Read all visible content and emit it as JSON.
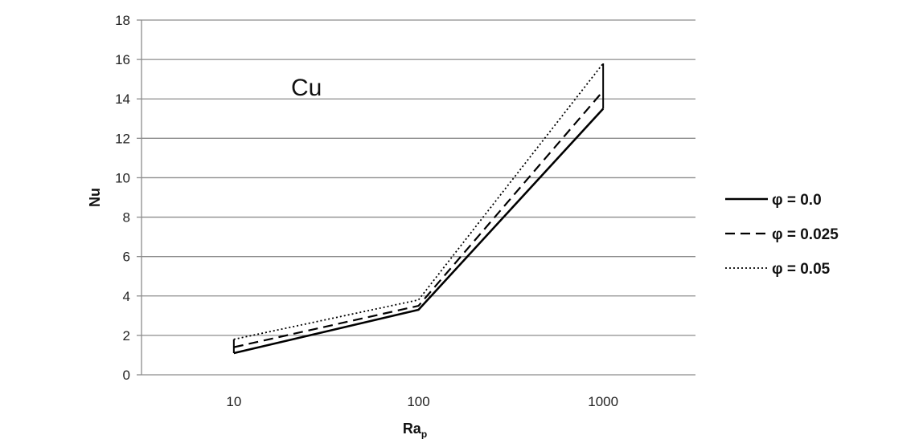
{
  "chart_data": {
    "type": "line",
    "title": "",
    "annotation": "Cu",
    "xlabel": "Ra",
    "xlabel_sub": "p",
    "ylabel": "Nu",
    "categories": [
      "10",
      "100",
      "1000"
    ],
    "ylim": [
      0,
      18
    ],
    "yticks": [
      0,
      2,
      4,
      6,
      8,
      10,
      12,
      14,
      16,
      18
    ],
    "grid": "horizontal",
    "legend_position": "right",
    "series": [
      {
        "name": "φ = 0.0",
        "dash": "solid",
        "values": [
          1.1,
          3.3,
          13.5
        ]
      },
      {
        "name": "φ = 0.025",
        "dash": "dashed",
        "values": [
          1.4,
          3.5,
          14.4
        ]
      },
      {
        "name": "φ = 0.05",
        "dash": "dotted",
        "values": [
          1.8,
          3.8,
          15.8
        ]
      }
    ],
    "colors": {
      "lines": "#000000",
      "grid": "#8c8c8c",
      "axis": "#8c8c8c"
    }
  }
}
